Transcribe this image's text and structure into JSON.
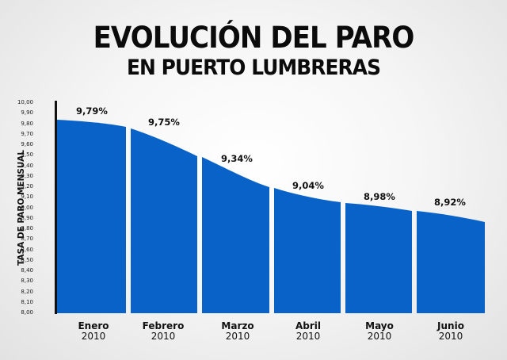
{
  "header": {
    "title": "EVOLUCIÓN DEL PARO",
    "subtitle": "EN PUERTO LUMBRERAS"
  },
  "axis": {
    "ylabel": "TASA DE PARO MENSUAL",
    "ticks": [
      "10,00",
      "9,90",
      "9,80",
      "9,70",
      "9,60",
      "9,50",
      "9,40",
      "9,30",
      "9,20",
      "9,10",
      "9,00",
      "8,90",
      "8,80",
      "8,70",
      "8,60",
      "8,50",
      "8,40",
      "8,30",
      "8,20",
      "8,10",
      "8,00"
    ]
  },
  "bars": [
    {
      "month": "Enero",
      "year": "2010",
      "label": "9,79%"
    },
    {
      "month": "Febrero",
      "year": "2010",
      "label": "9,75%"
    },
    {
      "month": "Marzo",
      "year": "2010",
      "label": "9,34%"
    },
    {
      "month": "Abril",
      "year": "2010",
      "label": "9,04%"
    },
    {
      "month": "Mayo",
      "year": "2010",
      "label": "8,98%"
    },
    {
      "month": "Junio",
      "year": "2010",
      "label": "8,92%"
    }
  ],
  "colors": {
    "bar": "#0862c8",
    "text": "#111111",
    "axis": "#111111"
  },
  "chart_data": {
    "type": "bar",
    "title": "EVOLUCIÓN DEL PARO EN PUERTO LUMBRERAS",
    "xlabel": "",
    "ylabel": "TASA DE PARO MENSUAL",
    "categories": [
      "Enero 2010",
      "Febrero 2010",
      "Marzo 2010",
      "Abril 2010",
      "Mayo 2010",
      "Junio 2010"
    ],
    "values": [
      9.79,
      9.75,
      9.34,
      9.04,
      8.98,
      8.92
    ],
    "value_labels": [
      "9,79%",
      "9,75%",
      "9,34%",
      "9,04%",
      "8,98%",
      "8,92%"
    ],
    "ylim": [
      8.0,
      10.0
    ],
    "ytick_step": 0.1,
    "grid": false,
    "legend": null,
    "note": "Bar tops drawn as a continuous smooth declining curve"
  }
}
